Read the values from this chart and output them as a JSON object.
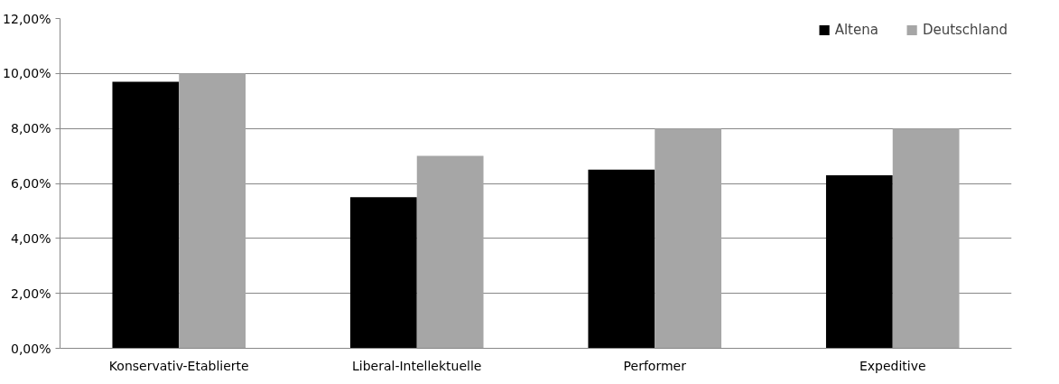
{
  "chart_data": {
    "type": "bar",
    "categories": [
      "Konservativ-Etablierte",
      "Liberal-Intellektuelle",
      "Performer",
      "Expeditive"
    ],
    "series": [
      {
        "name": "Altena",
        "color": "#000000",
        "values": [
          9.7,
          5.5,
          6.5,
          6.3
        ]
      },
      {
        "name": "Deutschland",
        "color": "#a6a6a6",
        "values": [
          10.0,
          7.0,
          8.0,
          8.0
        ]
      }
    ],
    "ylim": [
      0,
      12
    ],
    "yticks": [
      {
        "value": 0,
        "label": "0,00%"
      },
      {
        "value": 2,
        "label": "2,00%"
      },
      {
        "value": 4,
        "label": "4,00%"
      },
      {
        "value": 6,
        "label": "6,00%"
      },
      {
        "value": 8,
        "label": "8,00%"
      },
      {
        "value": 10,
        "label": "10,00%"
      },
      {
        "value": 12,
        "label": "12,00%"
      }
    ],
    "grid": "y",
    "legend": "top right"
  }
}
